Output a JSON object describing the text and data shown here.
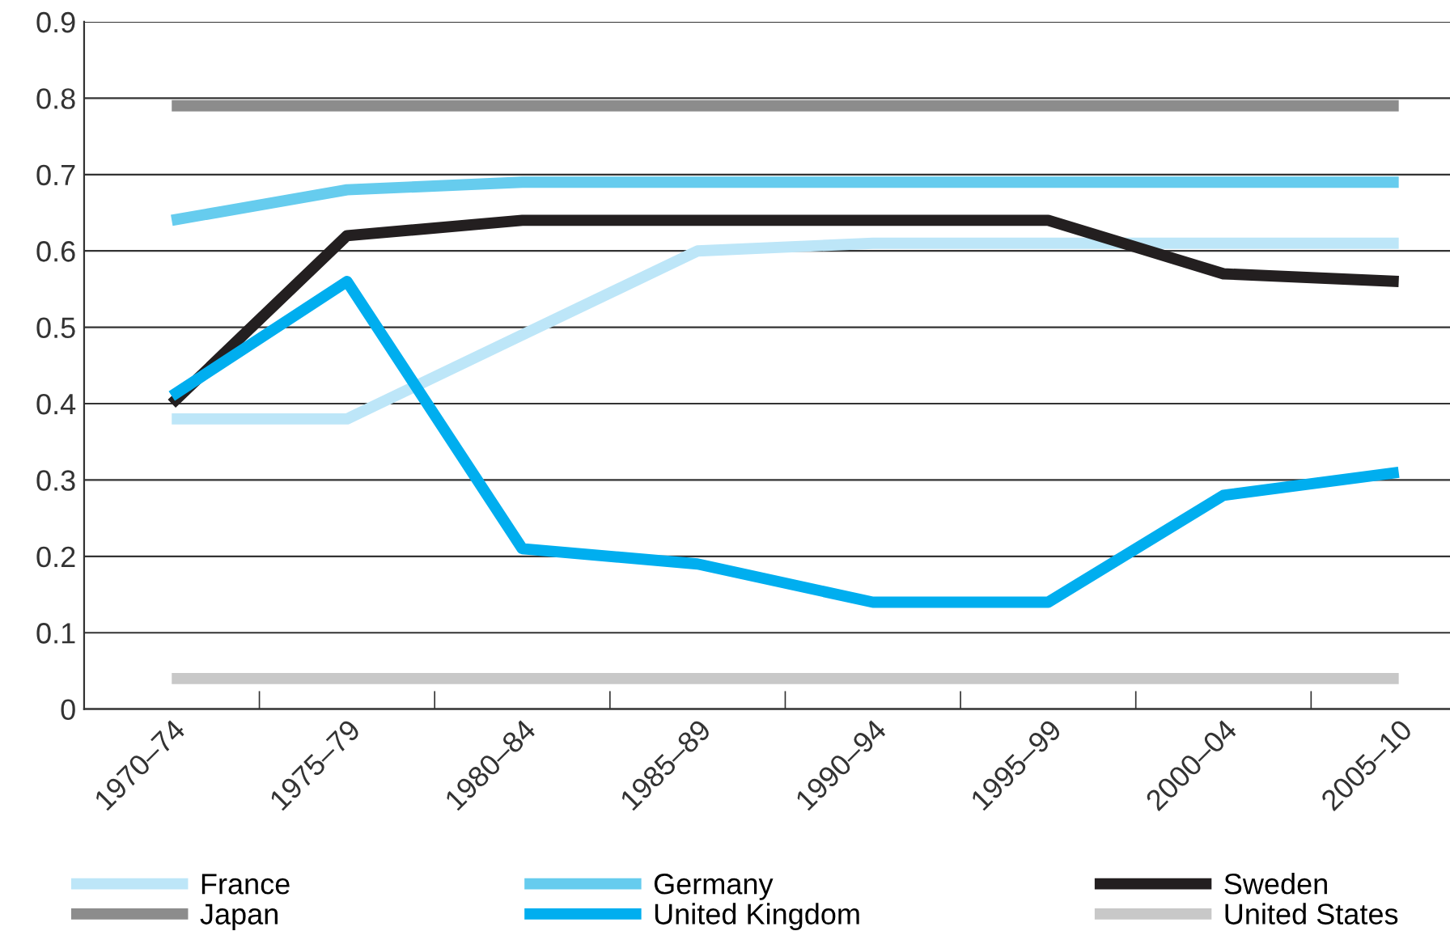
{
  "chart_data": {
    "type": "line",
    "categories": [
      "1970–74",
      "1975–79",
      "1980–84",
      "1985–89",
      "1990–94",
      "1995–99",
      "2000–04",
      "2005–10"
    ],
    "series": [
      {
        "name": "France",
        "color": "#bde6f8",
        "values": [
          0.38,
          0.38,
          0.49,
          0.6,
          0.61,
          0.61,
          0.61,
          0.61
        ]
      },
      {
        "name": "Germany",
        "color": "#66ccee",
        "values": [
          0.64,
          0.68,
          0.69,
          0.69,
          0.69,
          0.69,
          0.69,
          0.69
        ]
      },
      {
        "name": "Sweden",
        "color": "#231f20",
        "values": [
          0.4,
          0.62,
          0.64,
          0.64,
          0.64,
          0.64,
          0.57,
          0.56
        ]
      },
      {
        "name": "Japan",
        "color": "#8c8c8c",
        "values": [
          0.79,
          0.79,
          0.79,
          0.79,
          0.79,
          0.79,
          0.79,
          0.79
        ]
      },
      {
        "name": "United Kingdom",
        "color": "#00aeef",
        "values": [
          0.41,
          0.56,
          0.21,
          0.19,
          0.14,
          0.14,
          0.28,
          0.31
        ]
      },
      {
        "name": "United States",
        "color": "#c8c8c8",
        "values": [
          0.04,
          0.04,
          0.04,
          0.04,
          0.04,
          0.04,
          0.04,
          0.04
        ]
      }
    ],
    "ylim": [
      0,
      0.9
    ],
    "yticks": [
      0,
      0.1,
      0.2,
      0.3,
      0.4,
      0.5,
      0.6,
      0.7,
      0.8,
      0.9
    ],
    "grid": "y",
    "legend": "bottom",
    "marker": "none",
    "line_style": "solid"
  }
}
